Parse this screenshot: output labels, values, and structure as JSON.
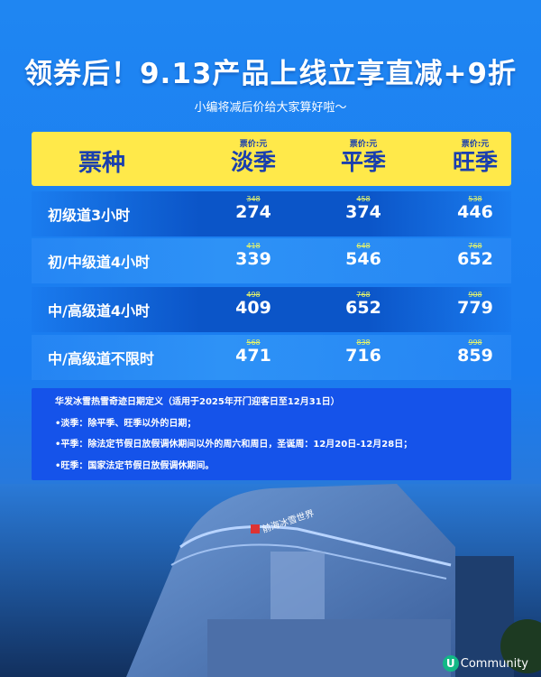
{
  "title": "领券后！9.13产品上线立享直减+9折",
  "subtitle": "小编将减后价给大家算好啦～",
  "table": {
    "header_label": "票种",
    "unit": "票价:元",
    "seasons": [
      "淡季",
      "平季",
      "旺季"
    ],
    "rows": [
      {
        "name": "初级道3小时",
        "prices": [
          {
            "orig": "348",
            "now": "274"
          },
          {
            "orig": "458",
            "now": "374"
          },
          {
            "orig": "538",
            "now": "446"
          }
        ]
      },
      {
        "name": "初/中级道4小时",
        "prices": [
          {
            "orig": "418",
            "now": "339"
          },
          {
            "orig": "648",
            "now": "546"
          },
          {
            "orig": "768",
            "now": "652"
          }
        ]
      },
      {
        "name": "中/高级道4小时",
        "prices": [
          {
            "orig": "498",
            "now": "409"
          },
          {
            "orig": "768",
            "now": "652"
          },
          {
            "orig": "908",
            "now": "779"
          }
        ]
      },
      {
        "name": "中/高级道不限时",
        "prices": [
          {
            "orig": "568",
            "now": "471"
          },
          {
            "orig": "838",
            "now": "716"
          },
          {
            "orig": "998",
            "now": "859"
          }
        ]
      }
    ]
  },
  "info": {
    "lines": [
      "华发冰雪热雪奇迹日期定义（适用于2025年开门迎客日至12月31日）",
      "•淡季：除平季、旺季以外的日期；",
      "•平季：除法定节假日放假调休期间以外的周六和周日，圣诞周：12月20日-12月28日；",
      "•旺季：国家法定节假日放假调休期间。"
    ]
  },
  "photo": {
    "sign": "前海冰雪世界"
  },
  "watermark": {
    "badge": "U",
    "text": "Community"
  },
  "colors": {
    "background": "#1a7cf0",
    "header": "#ffe94a",
    "header_text": "#1a3fae",
    "info_box": "#1553ea",
    "original_price": "#e6f36a"
  }
}
